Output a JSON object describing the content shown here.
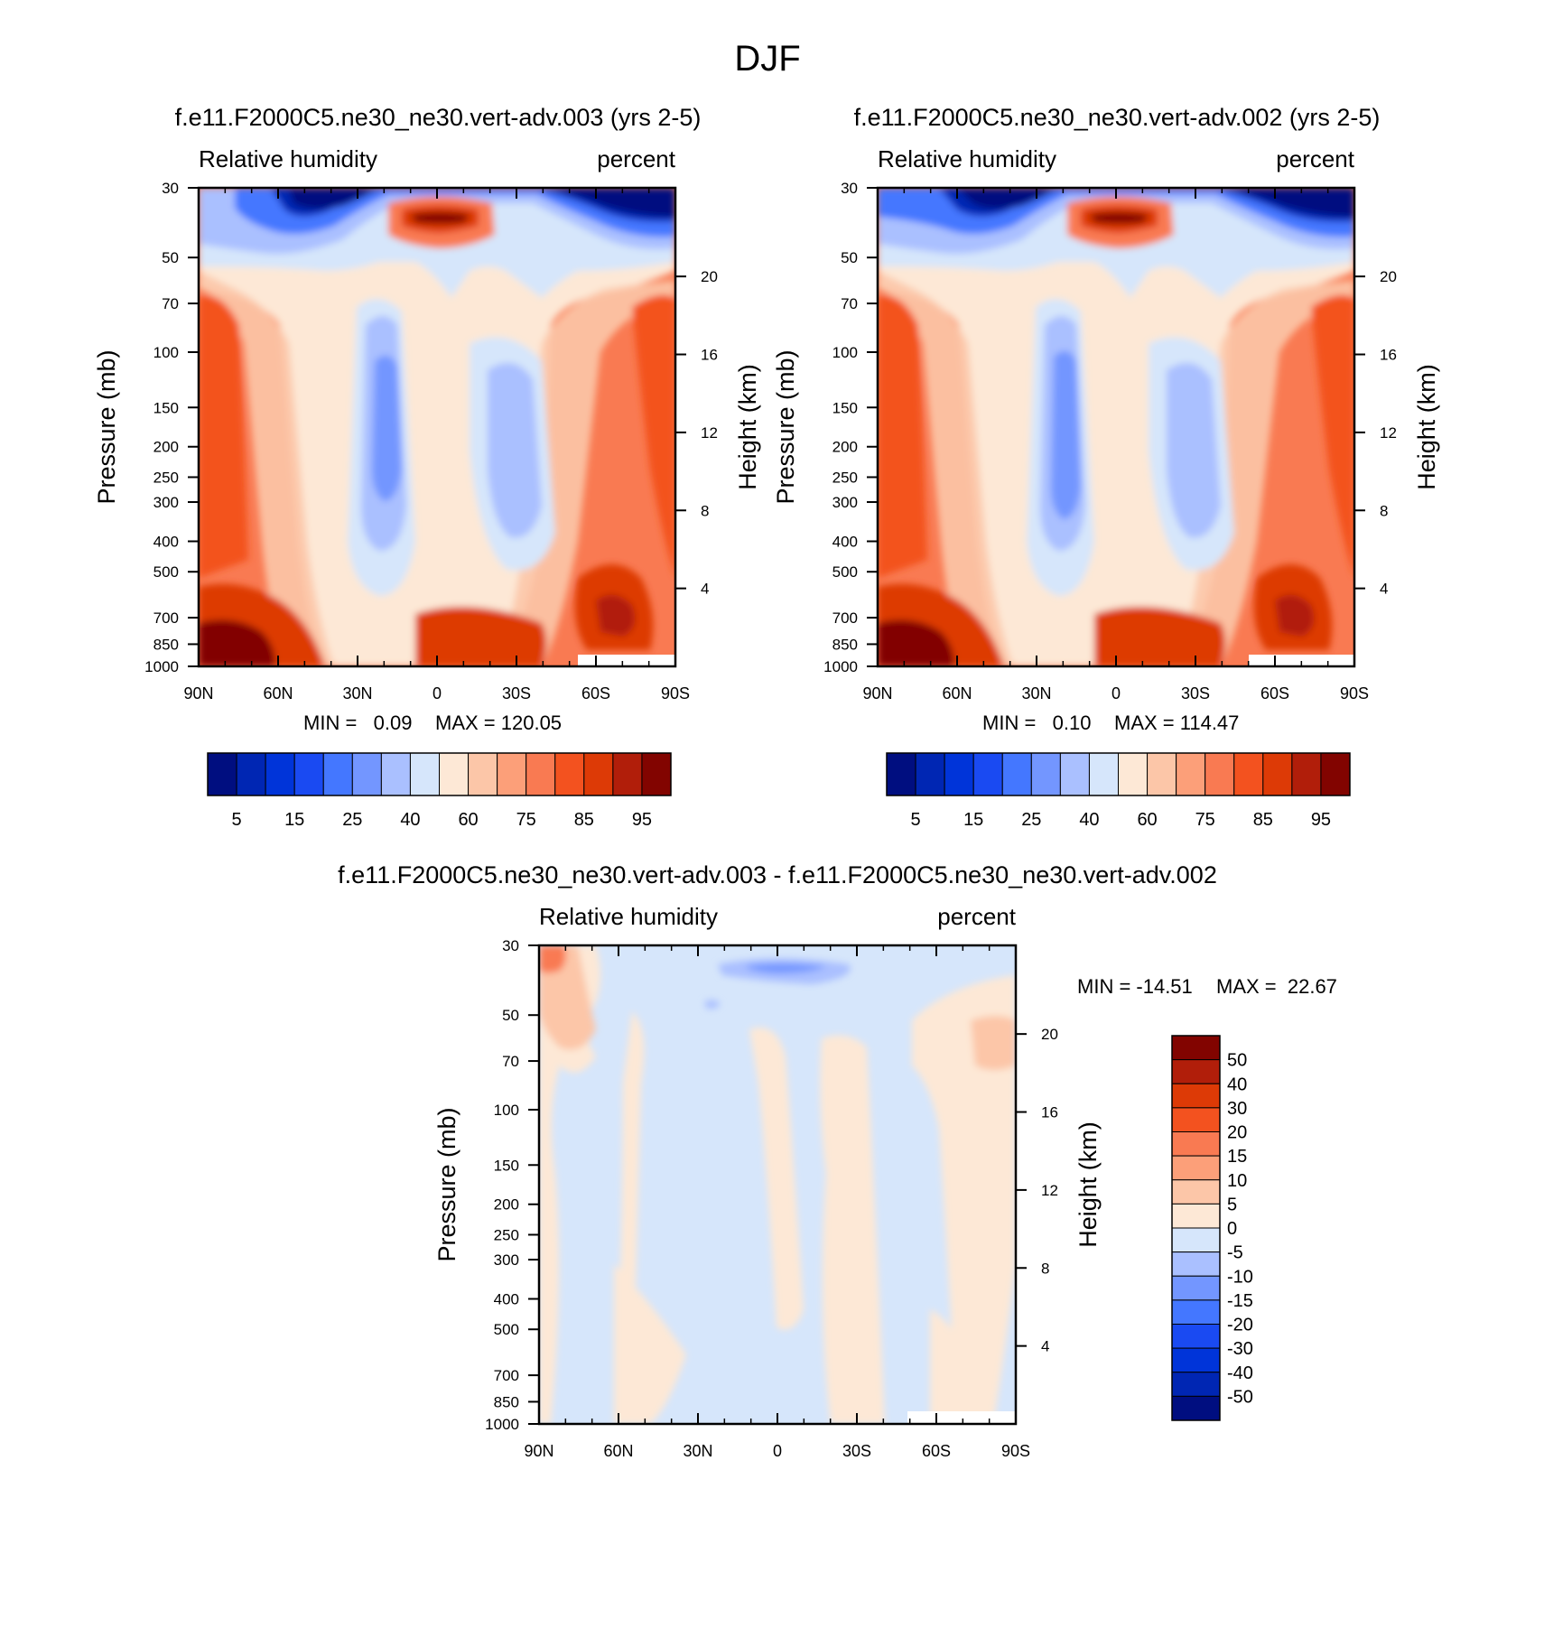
{
  "figure": {
    "title": "DJF"
  },
  "colors": {
    "ramp_blue_red": [
      "#000e80",
      "#0026b3",
      "#0034d9",
      "#1a4af2",
      "#4477ff",
      "#7396ff",
      "#aac0ff",
      "#d6e6fb",
      "#fde8d6",
      "#fcc6a8",
      "#fc9f79",
      "#f97a52",
      "#f3521f",
      "#dd3a06",
      "#b11e0a",
      "#820400"
    ]
  },
  "chart_data": [
    {
      "type": "contour",
      "id": "panel-a",
      "title": "f.e11.F2000C5.ne30_ne30.vert-adv.003 (yrs 2-5)",
      "left_label": "Relative humidity",
      "right_label": "percent",
      "ylabel": "Pressure (mb)",
      "y2label": "Height (km)",
      "x_ticks": [
        "90N",
        "60N",
        "30N",
        "0",
        "30S",
        "60S",
        "90S"
      ],
      "x_values": [
        90,
        60,
        30,
        0,
        -30,
        -60,
        -90
      ],
      "y_ticks": [
        "30",
        "50",
        "70",
        "100",
        "150",
        "200",
        "250",
        "300",
        "400",
        "500",
        "700",
        "850",
        "1000"
      ],
      "y_values": [
        30,
        50,
        70,
        100,
        150,
        200,
        250,
        300,
        400,
        500,
        700,
        850,
        1000
      ],
      "y2_ticks": [
        "20",
        "16",
        "12",
        "8",
        "4"
      ],
      "y2_values": [
        20,
        16,
        12,
        8,
        4
      ],
      "min_label": "MIN =   0.09",
      "max_label": "MAX = 120.05",
      "min": 0.09,
      "max": 120.05,
      "levels": [
        5,
        10,
        15,
        20,
        25,
        30,
        40,
        50,
        60,
        70,
        75,
        80,
        85,
        90,
        95
      ],
      "colorbar_labels": [
        "5",
        "15",
        "25",
        "40",
        "60",
        "75",
        "85",
        "95"
      ],
      "colorbar_orientation": "horizontal"
    },
    {
      "type": "contour",
      "id": "panel-b",
      "title": "f.e11.F2000C5.ne30_ne30.vert-adv.002 (yrs 2-5)",
      "left_label": "Relative humidity",
      "right_label": "percent",
      "ylabel": "Pressure (mb)",
      "y2label": "Height (km)",
      "x_ticks": [
        "90N",
        "60N",
        "30N",
        "0",
        "30S",
        "60S",
        "90S"
      ],
      "x_values": [
        90,
        60,
        30,
        0,
        -30,
        -60,
        -90
      ],
      "y_ticks": [
        "30",
        "50",
        "70",
        "100",
        "150",
        "200",
        "250",
        "300",
        "400",
        "500",
        "700",
        "850",
        "1000"
      ],
      "y_values": [
        30,
        50,
        70,
        100,
        150,
        200,
        250,
        300,
        400,
        500,
        700,
        850,
        1000
      ],
      "y2_ticks": [
        "20",
        "16",
        "12",
        "8",
        "4"
      ],
      "y2_values": [
        20,
        16,
        12,
        8,
        4
      ],
      "min_label": "MIN =   0.10",
      "max_label": "MAX = 114.47",
      "min": 0.1,
      "max": 114.47,
      "levels": [
        5,
        10,
        15,
        20,
        25,
        30,
        40,
        50,
        60,
        70,
        75,
        80,
        85,
        90,
        95
      ],
      "colorbar_labels": [
        "5",
        "15",
        "25",
        "40",
        "60",
        "75",
        "85",
        "95"
      ],
      "colorbar_orientation": "horizontal"
    },
    {
      "type": "contour",
      "id": "panel-diff",
      "title": "f.e11.F2000C5.ne30_ne30.vert-adv.003 - f.e11.F2000C5.ne30_ne30.vert-adv.002",
      "left_label": "Relative humidity",
      "right_label": "percent",
      "ylabel": "Pressure (mb)",
      "y2label": "Height (km)",
      "x_ticks": [
        "90N",
        "60N",
        "30N",
        "0",
        "30S",
        "60S",
        "90S"
      ],
      "x_values": [
        90,
        60,
        30,
        0,
        -30,
        -60,
        -90
      ],
      "y_ticks": [
        "30",
        "50",
        "70",
        "100",
        "150",
        "200",
        "250",
        "300",
        "400",
        "500",
        "700",
        "850",
        "1000"
      ],
      "y_values": [
        30,
        50,
        70,
        100,
        150,
        200,
        250,
        300,
        400,
        500,
        700,
        850,
        1000
      ],
      "y2_ticks": [
        "20",
        "16",
        "12",
        "8",
        "4"
      ],
      "y2_values": [
        20,
        16,
        12,
        8,
        4
      ],
      "min_label": "MIN = -14.51",
      "max_label": "MAX =  22.67",
      "min": -14.51,
      "max": 22.67,
      "levels": [
        -50,
        -40,
        -30,
        -20,
        -15,
        -10,
        -5,
        0,
        5,
        10,
        15,
        20,
        30,
        40,
        50
      ],
      "colorbar_labels": [
        "50",
        "40",
        "30",
        "20",
        "15",
        "10",
        "5",
        "0",
        "-5",
        "-10",
        "-15",
        "-20",
        "-30",
        "-40",
        "-50"
      ],
      "colorbar_orientation": "vertical"
    }
  ]
}
